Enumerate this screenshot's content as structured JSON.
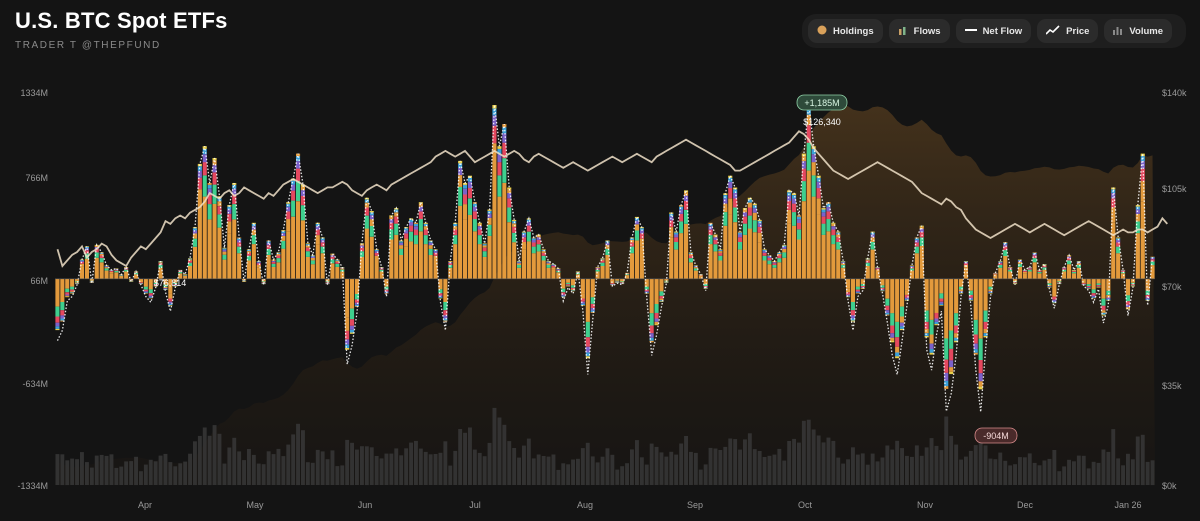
{
  "header": {
    "title": "U.S. BTC Spot ETFs",
    "subtitle": "TRADER T @THEPFUND"
  },
  "toolbar": {
    "buttons": [
      {
        "label": "Holdings",
        "icon": "holdings-dot-icon",
        "color": "#d9a15a"
      },
      {
        "label": "Flows",
        "icon": "flows-bars-icon",
        "color": "#c9a066"
      },
      {
        "label": "Net Flow",
        "icon": "net-flow-line-icon",
        "color": "#ffffff"
      },
      {
        "label": "Price",
        "icon": "price-trend-icon",
        "color": "#ffffff"
      },
      {
        "label": "Volume",
        "icon": "volume-bars-icon",
        "color": "#8a8a8a"
      }
    ]
  },
  "colors": {
    "background": "#141414",
    "flow_orange": "#e39a3c",
    "flow_green": "#3ecf8e",
    "flow_red": "#e5485f",
    "flow_purple": "#7b61c9",
    "flow_blue": "#3aa0d8",
    "flow_yellow": "#e8cf4a",
    "price_line": "#f0e0c8",
    "holdings_area": "#6b4a22",
    "volume_bars": "#3a3a3a"
  },
  "chart_data": {
    "type": "bar",
    "title": "U.S. BTC Spot ETFs",
    "left_axis": {
      "ticks": [
        "1334M",
        "766M",
        "66M",
        "-634M",
        "-1334M"
      ],
      "values": [
        1334,
        766,
        66,
        -634,
        -1334
      ]
    },
    "right_axis": {
      "ticks": [
        "$140k",
        "$105k",
        "$70k",
        "$35k",
        "$0k"
      ],
      "values": [
        140,
        105,
        70,
        35,
        0
      ]
    },
    "x_labels": [
      "Apr",
      "May",
      "Jun",
      "Jul",
      "Aug",
      "Sep",
      "Oct",
      "Nov",
      "Dec",
      "Jan 26"
    ],
    "annotations": {
      "max_flow": "+1,185M",
      "min_flow": "-904M",
      "max_price": "$126,340",
      "min_price": "$76,814"
    },
    "series": [
      {
        "name": "Net Flow",
        "unit": "M USD",
        "values": [
          -420,
          -350,
          -150,
          -120,
          -40,
          130,
          220,
          -30,
          230,
          180,
          90,
          60,
          70,
          30,
          80,
          -20,
          50,
          -40,
          -120,
          -160,
          -60,
          120,
          -90,
          -220,
          -60,
          60,
          30,
          140,
          350,
          780,
          900,
          650,
          820,
          560,
          210,
          500,
          650,
          280,
          -20,
          200,
          380,
          120,
          -40,
          260,
          130,
          180,
          330,
          520,
          680,
          850,
          640,
          240,
          160,
          380,
          280,
          -40,
          170,
          130,
          80,
          -580,
          -450,
          -230,
          240,
          550,
          460,
          200,
          80,
          -120,
          430,
          480,
          260,
          350,
          410,
          380,
          520,
          380,
          260,
          200,
          -160,
          -350,
          120,
          380,
          800,
          650,
          700,
          520,
          380,
          240,
          470,
          1180,
          900,
          1050,
          620,
          400,
          120,
          320,
          410,
          280,
          300,
          200,
          120,
          100,
          70,
          -150,
          -60,
          -100,
          50,
          -220,
          -650,
          -280,
          80,
          140,
          260,
          -50,
          -30,
          -40,
          40,
          280,
          420,
          350,
          -120,
          -520,
          -380,
          -190,
          -30,
          450,
          320,
          500,
          600,
          180,
          90,
          30,
          -80,
          380,
          300,
          200,
          580,
          700,
          620,
          320,
          480,
          550,
          510,
          400,
          200,
          160,
          120,
          180,
          230,
          600,
          580,
          430,
          850,
          1185,
          900,
          700,
          480,
          520,
          380,
          320,
          120,
          -150,
          -350,
          -120,
          -80,
          140,
          320,
          80,
          -100,
          -300,
          -520,
          -650,
          -420,
          -180,
          90,
          280,
          360,
          -480,
          -620,
          -380,
          -220,
          -900,
          -780,
          -520,
          -120,
          120,
          -180,
          -620,
          -904,
          -480,
          -120,
          40,
          120,
          250,
          80,
          -40,
          130,
          60,
          80,
          180,
          60,
          100,
          -70,
          -200,
          -40,
          80,
          160,
          60,
          120,
          -50,
          -80,
          -160,
          -70,
          -300,
          -180,
          620,
          280,
          60,
          -250,
          -60,
          500,
          850,
          -180,
          150
        ]
      },
      {
        "name": "Price",
        "unit": "k USD",
        "values": [
          84,
          78,
          80,
          82,
          83,
          85,
          81,
          83,
          84,
          86,
          85,
          82,
          80,
          79,
          78,
          81,
          83,
          85,
          84,
          86,
          88,
          90,
          94,
          93,
          95,
          96,
          95,
          97,
          98,
          99,
          101,
          104,
          103,
          102,
          104,
          105,
          103,
          104,
          106,
          105,
          104,
          103,
          102,
          104,
          103,
          105,
          107,
          108,
          109,
          108,
          107,
          106,
          105,
          104,
          105,
          106,
          106,
          107,
          108,
          107,
          105,
          104,
          103,
          105,
          106,
          107,
          106,
          105,
          107,
          108,
          109,
          110,
          111,
          112,
          113,
          114,
          115,
          117,
          118,
          119,
          118,
          117,
          118,
          119,
          117,
          115,
          116,
          117,
          118,
          119,
          118,
          117,
          118,
          119,
          118,
          116,
          115,
          117,
          118,
          117,
          116,
          115,
          114,
          113,
          114,
          115,
          114,
          113,
          112,
          113,
          114,
          115,
          116,
          117,
          116,
          115,
          116,
          117,
          118,
          117,
          116,
          115,
          117,
          118,
          119,
          120,
          121,
          122,
          123,
          122,
          121,
          120,
          119,
          118,
          117,
          116,
          115,
          114,
          112,
          112,
          113,
          114,
          115,
          116,
          117,
          118,
          119,
          120,
          121,
          122,
          124,
          126,
          125,
          123,
          120,
          118,
          116,
          114,
          112,
          111,
          110,
          109,
          110,
          111,
          112,
          113,
          114,
          115,
          114,
          113,
          112,
          111,
          110,
          109,
          108,
          106,
          104,
          103,
          102,
          101,
          100,
          102,
          101,
          99,
          98,
          95,
          93,
          91,
          90,
          89,
          88,
          89,
          90,
          91,
          92,
          93,
          92,
          91,
          90,
          91,
          92,
          93,
          92,
          91,
          90,
          89,
          90,
          91,
          92,
          93,
          94,
          93,
          92,
          91,
          90,
          89,
          90,
          91,
          90,
          90,
          91,
          91,
          90,
          91,
          92,
          95,
          93
        ]
      }
    ],
    "ylim_left": [
      -1334,
      1334
    ],
    "ylim_right": [
      0,
      140
    ],
    "grid": false,
    "legend": "top-right toolbar"
  }
}
